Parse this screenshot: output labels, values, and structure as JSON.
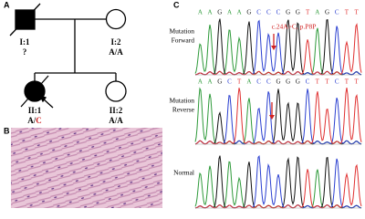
{
  "panel_a": {
    "label": "A",
    "individuals": [
      {
        "id": "I:1",
        "genotype": [
          "?"
        ]
      },
      {
        "id": "I:2",
        "genotype": [
          "A/A"
        ]
      },
      {
        "id": "II:1",
        "genotype": [
          "A/",
          "C"
        ]
      },
      {
        "id": "II:2",
        "genotype": [
          "A/A"
        ]
      }
    ]
  },
  "panel_b": {
    "label": "B"
  },
  "panel_c": {
    "label": "C",
    "base_colors": {
      "A": "#2e9a3a",
      "G": "#111111",
      "C": "#2a3fd0",
      "T": "#e03030"
    },
    "annotation": "c.24A>C, p.P8P",
    "traces": [
      {
        "name": [
          "Mutation",
          "Forward"
        ],
        "sequence": [
          "A",
          "A",
          "G",
          "A",
          "A",
          "G",
          "C",
          "C",
          "C",
          "G",
          "G",
          "T",
          "A",
          "G",
          "C",
          "T",
          "T"
        ]
      },
      {
        "name": [
          "Mutation",
          "Reverse"
        ],
        "sequence": [
          "A",
          "A",
          "G",
          "C",
          "T",
          "A",
          "C",
          "C",
          "G",
          "G",
          "G",
          "C",
          "T",
          "T",
          "C",
          "T",
          "T"
        ]
      },
      {
        "name": [
          "Normal"
        ],
        "sequence": []
      }
    ]
  }
}
